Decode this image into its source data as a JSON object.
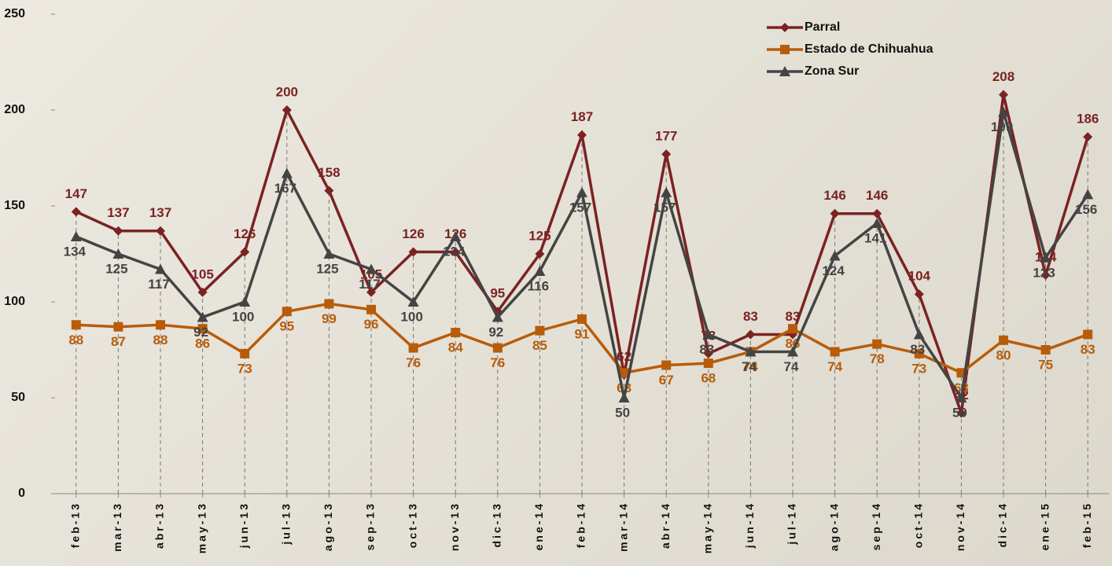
{
  "chart_data": {
    "type": "line",
    "categories": [
      "feb-13",
      "mar-13",
      "abr-13",
      "may-13",
      "jun-13",
      "jul-13",
      "ago-13",
      "sep-13",
      "oct-13",
      "nov-13",
      "dic-13",
      "ene-14",
      "feb-14",
      "mar-14",
      "abr-14",
      "may-14",
      "jun-14",
      "jul-14",
      "ago-14",
      "sep-14",
      "oct-14",
      "nov-14",
      "dic-14",
      "ene-15",
      "feb-15"
    ],
    "series": [
      {
        "name": "Parral",
        "color": "#7b2222",
        "marker": "diamond",
        "values": [
          147,
          137,
          137,
          105,
          126,
          200,
          158,
          105,
          126,
          126,
          95,
          125,
          187,
          62,
          177,
          73,
          83,
          83,
          146,
          146,
          104,
          42,
          208,
          114,
          186
        ]
      },
      {
        "name": "Estado de Chihuahua",
        "color": "#b85c0a",
        "marker": "square",
        "values": [
          88,
          87,
          88,
          86,
          73,
          95,
          99,
          96,
          76,
          84,
          76,
          85,
          91,
          63,
          67,
          68,
          74,
          86,
          74,
          78,
          73,
          63,
          80,
          75,
          83
        ]
      },
      {
        "name": "Zona Sur",
        "color": "#444444",
        "marker": "triangle",
        "values": [
          134,
          125,
          117,
          92,
          100,
          167,
          125,
          117,
          100,
          134,
          92,
          116,
          157,
          50,
          157,
          83,
          74,
          74,
          124,
          141,
          83,
          50,
          199,
          123,
          156
        ]
      }
    ],
    "ylim": [
      0,
      250
    ],
    "yticks": [
      0,
      50,
      100,
      150,
      200,
      250
    ],
    "legend": "top-right"
  }
}
